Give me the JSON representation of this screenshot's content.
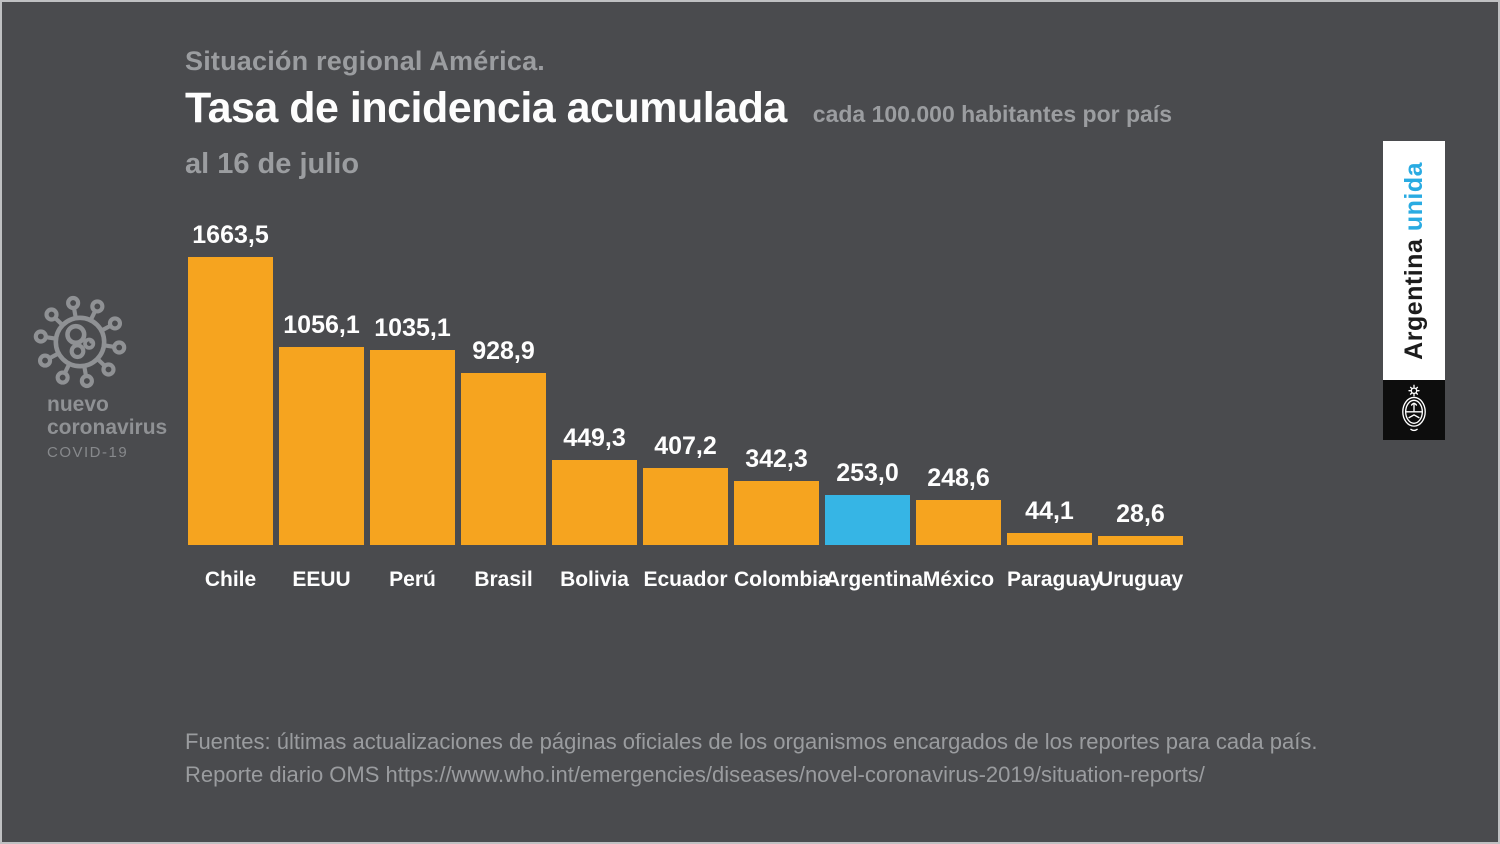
{
  "header": {
    "kicker": "Situación regional América.",
    "title": "Tasa de incidencia acumulada",
    "subtitle": "cada 100.000 habitantes por país",
    "date_line": "al 16 de julio"
  },
  "brand_left": {
    "icon": "coronavirus-icon",
    "line1": "nuevo",
    "line2": "coronavirus",
    "line3": "COVID-19"
  },
  "banner_right": {
    "text_black": "Argentina",
    "text_blue": "unida",
    "accent_color": "#29abe2",
    "emblem": "argentina-coat-of-arms"
  },
  "footer": {
    "line1": "Fuentes: últimas actualizaciones de páginas oficiales de los organismos encargados de los reportes para cada país.",
    "line2": "Reporte diario OMS https://www.who.int/emergencies/diseases/novel-coronavirus-2019/situation-reports/"
  },
  "colors": {
    "background": "#4a4b4e",
    "bar_default": "#f6a41f",
    "bar_highlight": "#36b5e5",
    "text_primary": "#fefefe",
    "text_muted": "#9b9da0",
    "brand_gray": "#8f9194"
  },
  "chart_data": {
    "type": "bar",
    "title": "Tasa de incidencia acumulada cada 100.000 habitantes por país, al 16 de julio",
    "categories": [
      "Chile",
      "EEUU",
      "Perú",
      "Brasil",
      "Bolivia",
      "Ecuador",
      "Colombia",
      "Argentina",
      "México",
      "Paraguay",
      "Uruguay"
    ],
    "values": [
      1663.5,
      1056.1,
      1035.1,
      928.9,
      449.3,
      407.2,
      342.3,
      253.0,
      248.6,
      44.1,
      28.6
    ],
    "value_labels": [
      "1663,5",
      "1056,1",
      "1035,1",
      "928,9",
      "449,3",
      "407,2",
      "342,3",
      "253,0",
      "248,6",
      "44,1",
      "28,6"
    ],
    "xlabel": "",
    "ylabel": "tasa de incidencia acumulada cada 100.000 habitantes",
    "ylim": [
      0,
      1663.5
    ],
    "grid": false,
    "legend": false,
    "highlight_category": "Argentina",
    "bar_color": "#f6a41f",
    "highlight_color": "#36b5e5"
  }
}
